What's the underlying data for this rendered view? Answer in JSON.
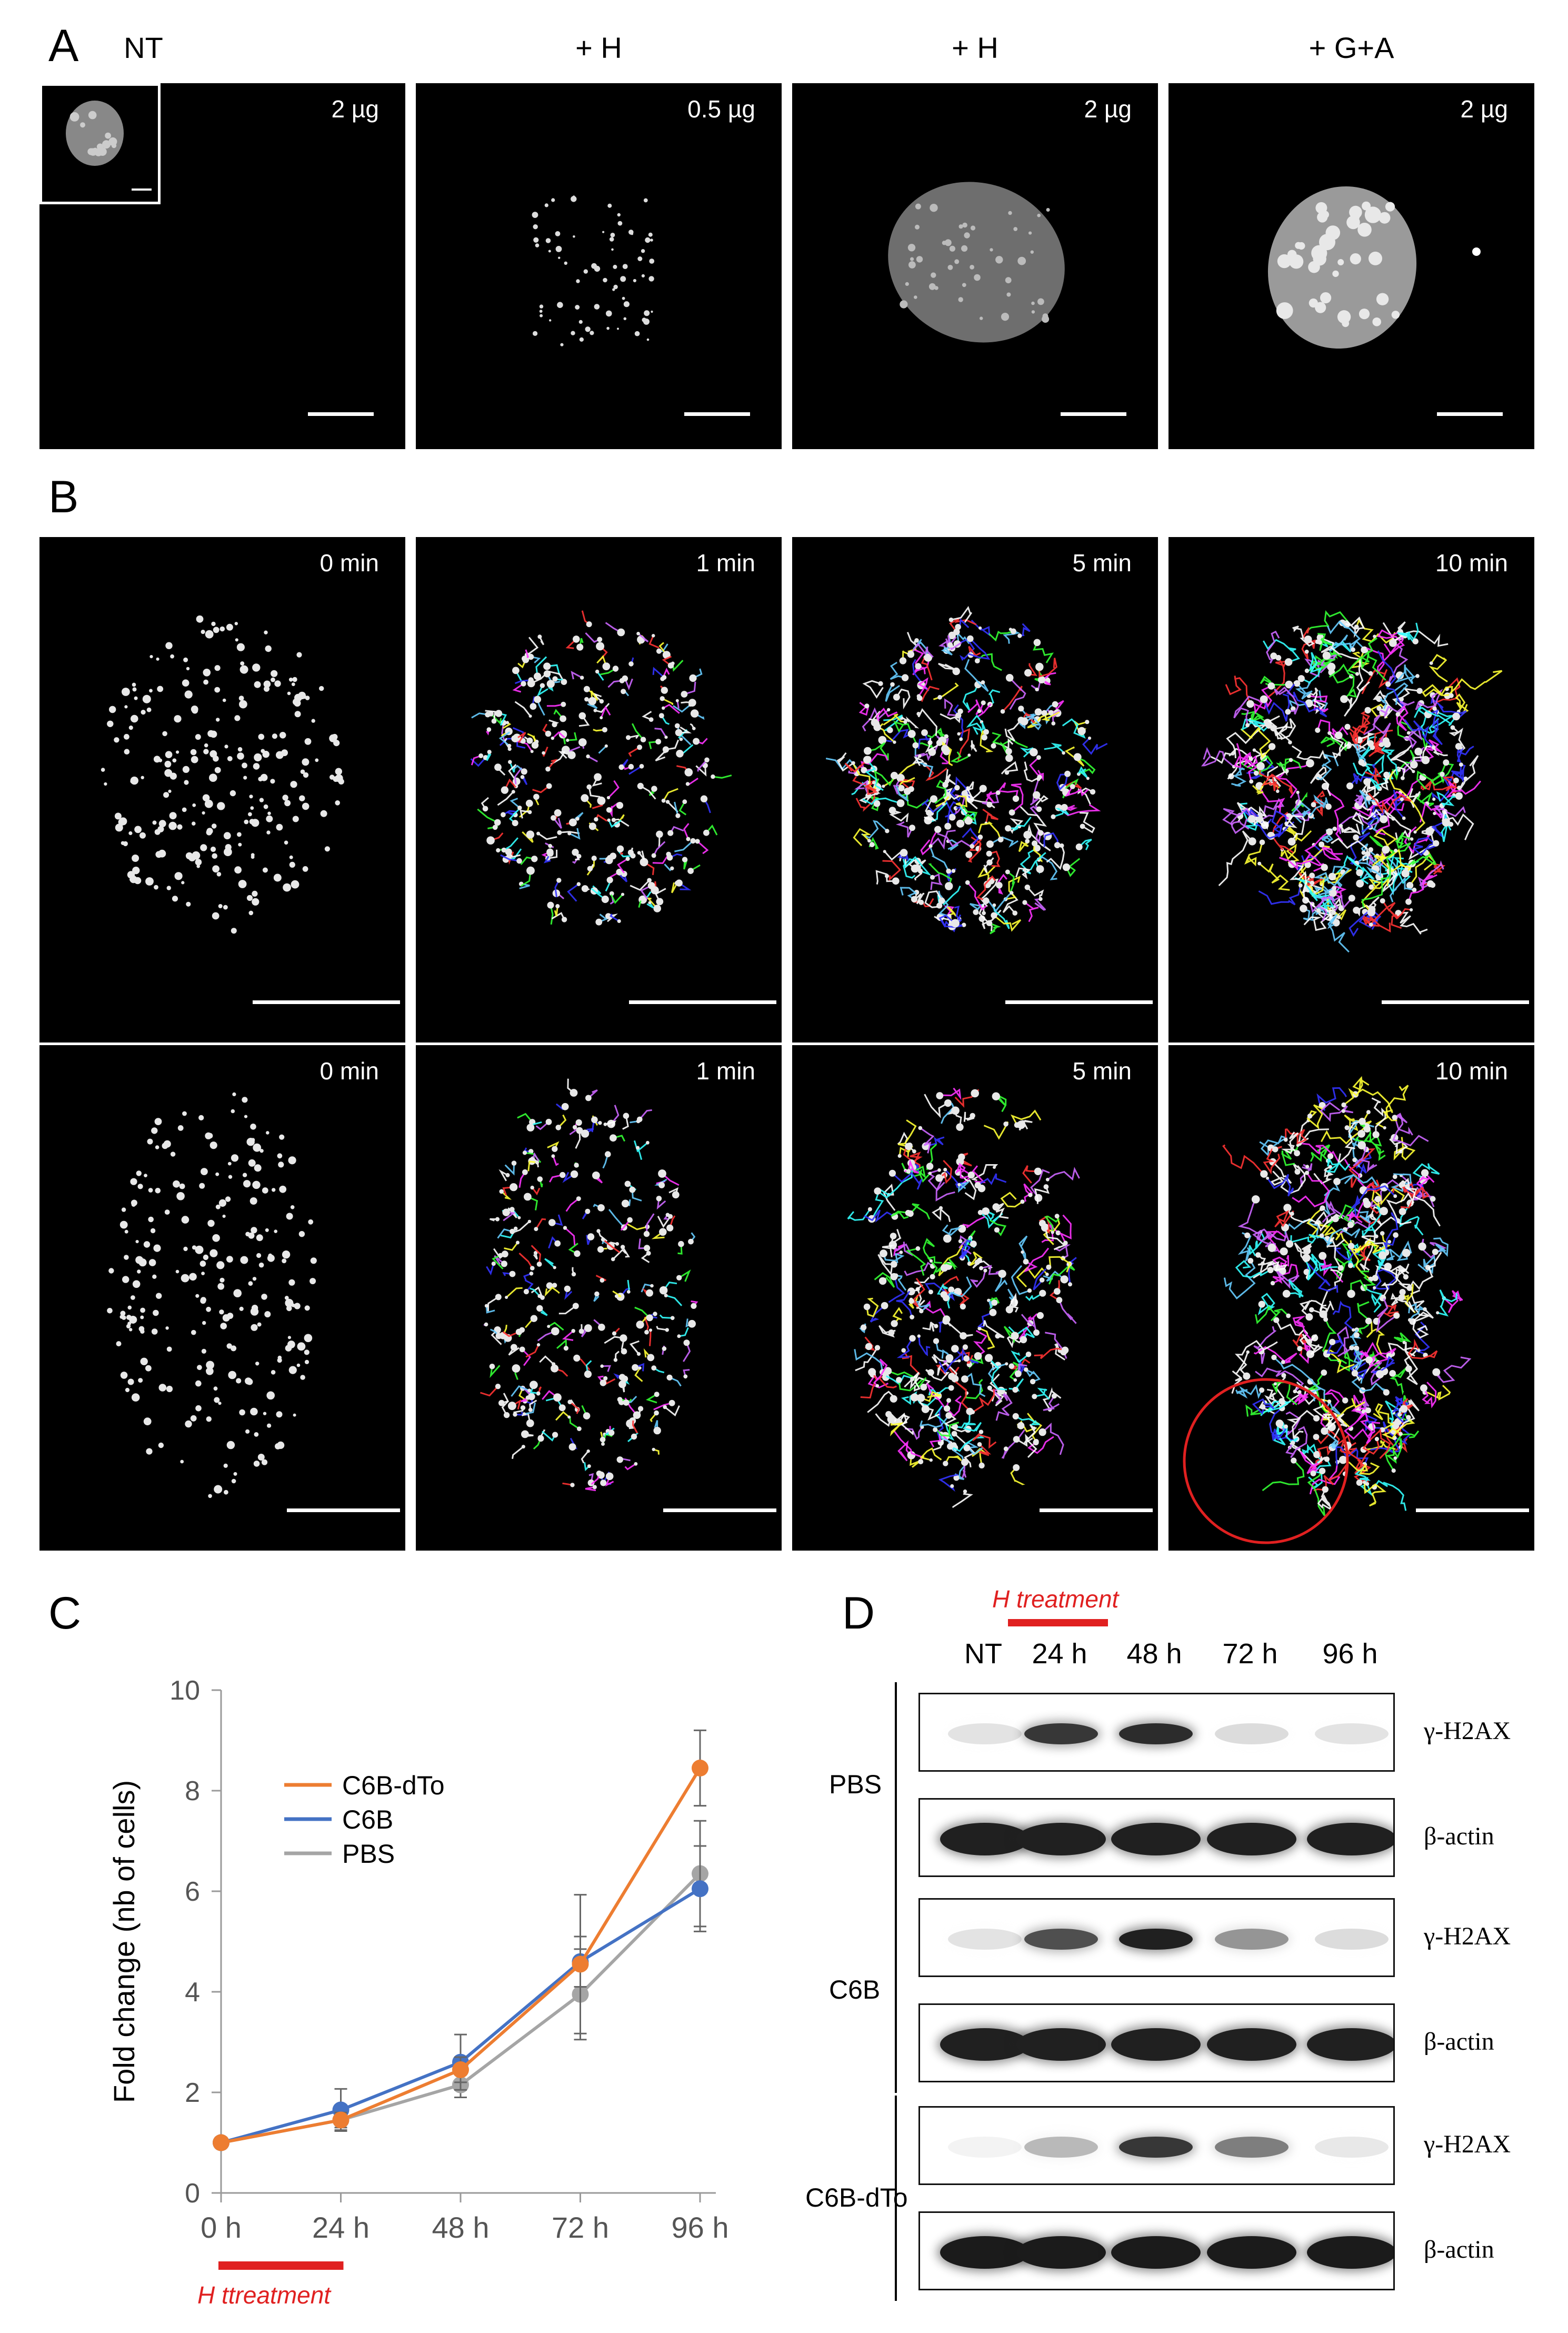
{
  "panel_a": {
    "letter": "A",
    "columns": [
      {
        "title": "NT",
        "amount": "2 µg"
      },
      {
        "title": "+ H",
        "amount": "0.5 µg"
      },
      {
        "title": "+ H",
        "amount": "2 µg"
      },
      {
        "title": "+ G+A",
        "amount": "2 µg"
      }
    ]
  },
  "panel_b": {
    "letter": "B",
    "rows": [
      {
        "frames": [
          {
            "time": "0 min"
          },
          {
            "time": "1 min"
          },
          {
            "time": "5 min"
          },
          {
            "time": "10 min"
          }
        ]
      },
      {
        "frames": [
          {
            "time": "0 min"
          },
          {
            "time": "1 min"
          },
          {
            "time": "5 min"
          },
          {
            "time": "10 min"
          }
        ]
      }
    ],
    "highlight_color": "#e02020"
  },
  "panel_c": {
    "letter": "C",
    "treatment_label": "H ttreatment",
    "treatment_color": "#e02020"
  },
  "panel_d": {
    "letter": "D",
    "treatment_label": "H treatment",
    "lanes": [
      "NT",
      "24 h",
      "48 h",
      "72 h",
      "96 h"
    ],
    "groups": [
      {
        "name": "PBS",
        "rows": [
          {
            "label": "γ-H2AX",
            "intensity": [
              0.12,
              0.85,
              0.9,
              0.15,
              0.12
            ]
          },
          {
            "label": "β-actin",
            "intensity": [
              0.95,
              0.95,
              0.95,
              0.95,
              0.95
            ]
          }
        ]
      },
      {
        "name": "C6B",
        "rows": [
          {
            "label": "γ-H2AX",
            "intensity": [
              0.12,
              0.75,
              0.95,
              0.45,
              0.15
            ]
          },
          {
            "label": "β-actin",
            "intensity": [
              0.95,
              0.95,
              0.95,
              0.95,
              0.95
            ]
          }
        ]
      },
      {
        "name": "C6B-dTo",
        "rows": [
          {
            "label": "γ-H2AX",
            "intensity": [
              0.05,
              0.3,
              0.85,
              0.55,
              0.1
            ]
          },
          {
            "label": "β-actin",
            "intensity": [
              0.97,
              0.97,
              0.97,
              0.97,
              0.97
            ]
          }
        ]
      }
    ]
  },
  "chart_data": {
    "type": "line",
    "title": "",
    "xlabel": "",
    "ylabel": "Fold change (nb of cells)",
    "categories": [
      "0 h",
      "24 h",
      "48 h",
      "72 h",
      "96 h"
    ],
    "ylim": [
      0,
      10
    ],
    "yticks": [
      0,
      2,
      4,
      6,
      8,
      10
    ],
    "grid": false,
    "legend_position": "top-left",
    "series": [
      {
        "name": "C6B-dTo",
        "color": "#ed7d31",
        "values": [
          1.0,
          1.45,
          2.45,
          4.55,
          8.45
        ],
        "errors": [
          0,
          0.15,
          0.25,
          1.38,
          0.75
        ]
      },
      {
        "name": "C6B",
        "color": "#4472c4",
        "values": [
          1.0,
          1.65,
          2.6,
          4.6,
          6.05
        ],
        "errors": [
          0,
          0.42,
          0.55,
          0.5,
          0.85
        ]
      },
      {
        "name": "PBS",
        "color": "#a5a5a5",
        "values": [
          1.0,
          1.45,
          2.15,
          3.95,
          6.35
        ],
        "errors": [
          0,
          0.2,
          0.25,
          0.9,
          1.05
        ]
      }
    ]
  }
}
